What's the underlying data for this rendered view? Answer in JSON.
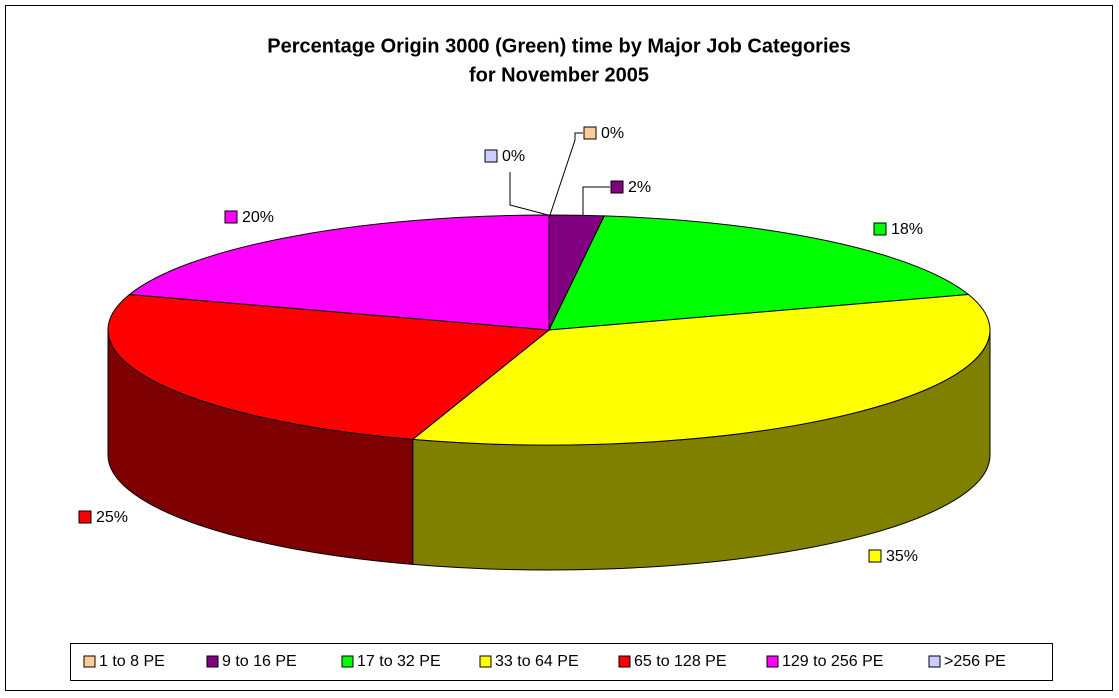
{
  "chart_data": {
    "type": "pie",
    "title": "Percentage Origin 3000 (Green) time by Major Job Categories",
    "subtitle": "for November 2005",
    "categories": [
      "1 to 8 PE",
      "9 to 16 PE",
      "17 to 32 PE",
      "33 to 64 PE",
      "65 to 128 PE",
      "129 to 256 PE",
      ">256 PE"
    ],
    "values": [
      0,
      2,
      18,
      35,
      25,
      20,
      0
    ],
    "value_labels": [
      "0%",
      "2%",
      "18%",
      "35%",
      "25%",
      "20%",
      "0%"
    ],
    "colors": [
      "#ffcc99",
      "#800080",
      "#00ff00",
      "#ffff00",
      "#ff0000",
      "#ff00ff",
      "#ccccff"
    ],
    "legend": "bottom"
  }
}
